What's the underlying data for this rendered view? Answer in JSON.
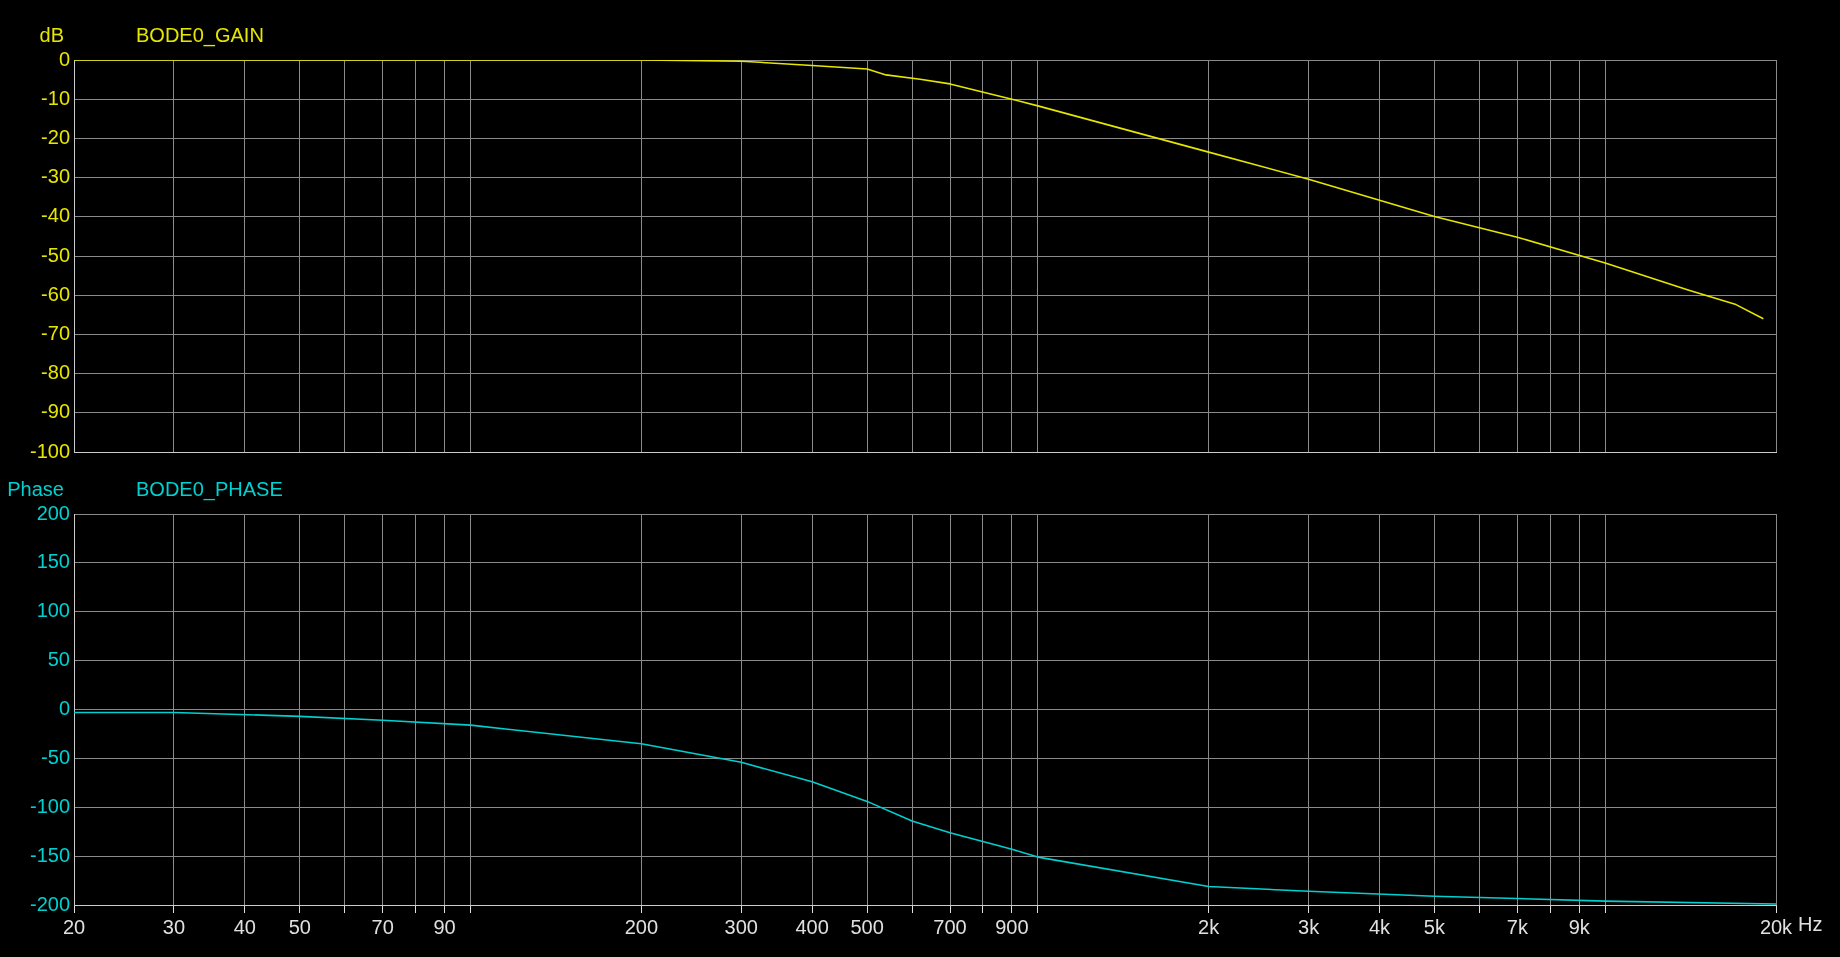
{
  "chart_data": [
    {
      "type": "line",
      "ylabel": "dB",
      "log": "x",
      "grid": true,
      "legend": "top left",
      "tick_labels": "y",
      "xlim": [
        20,
        20000
      ],
      "ylim": [
        -100,
        0
      ],
      "xticks": [
        20,
        30,
        40,
        50,
        60,
        70,
        80,
        90,
        100,
        200,
        300,
        400,
        500,
        600,
        700,
        800,
        900,
        1000,
        2000,
        3000,
        4000,
        5000,
        6000,
        7000,
        8000,
        9000,
        10000,
        20000
      ],
      "yticks": [
        0,
        -10,
        -20,
        -30,
        -40,
        -50,
        -60,
        -70,
        -80,
        -90,
        -100
      ],
      "series": [
        {
          "name": "BODE0_GAIN",
          "color": "#e6e600",
          "x": [
            20,
            100,
            200,
            300,
            400,
            500,
            540,
            620,
            700,
            900,
            1000,
            2000,
            3000,
            5000,
            7000,
            10000,
            14000,
            17000,
            19000
          ],
          "values": [
            0,
            0,
            0,
            -0.3,
            -1.4,
            -2.3,
            -3.8,
            -4.9,
            -6.1,
            -10,
            -11.7,
            -23.5,
            -30.4,
            -39.9,
            -45.2,
            -51.8,
            -58.7,
            -62.4,
            -66
          ]
        }
      ]
    },
    {
      "type": "line",
      "ylabel": "Phase",
      "xlabel": "Hz",
      "log": "x",
      "grid": true,
      "legend": "top left",
      "xlim": [
        20,
        20000
      ],
      "ylim": [
        -200,
        200
      ],
      "xticks": [
        20,
        30,
        40,
        50,
        {
          "value": 60,
          "label": null
        },
        70,
        {
          "value": 80,
          "label": null
        },
        90,
        {
          "value": 100,
          "label": null
        },
        200,
        300,
        400,
        500,
        {
          "value": 600,
          "label": null
        },
        700,
        {
          "value": 800,
          "label": null
        },
        900,
        {
          "value": 1000,
          "label": null
        },
        {
          "value": 2000,
          "label": "2k"
        },
        {
          "value": 3000,
          "label": "3k"
        },
        {
          "value": 4000,
          "label": "4k"
        },
        {
          "value": 5000,
          "label": "5k"
        },
        {
          "value": 6000,
          "label": null
        },
        {
          "value": 7000,
          "label": "7k"
        },
        {
          "value": 8000,
          "label": null
        },
        {
          "value": 9000,
          "label": "9k"
        },
        {
          "value": 10000,
          "label": null
        },
        {
          "value": 20000,
          "label": "20k"
        }
      ],
      "yticks": [
        200,
        150,
        100,
        50,
        0,
        -50,
        -100,
        -150,
        -200
      ],
      "series": [
        {
          "name": "BODE0_PHASE",
          "color": "#00d0d0",
          "x": [
            20,
            30,
            50,
            70,
            100,
            200,
            300,
            400,
            500,
            600,
            700,
            900,
            1000,
            2000,
            3000,
            5000,
            10000,
            20000
          ],
          "values": [
            -3,
            -3,
            -7,
            -11,
            -16,
            -35,
            -54,
            -74,
            -94,
            -114,
            -126,
            -143,
            -151,
            -181,
            -186,
            -191,
            -196,
            -199
          ]
        }
      ]
    }
  ]
}
